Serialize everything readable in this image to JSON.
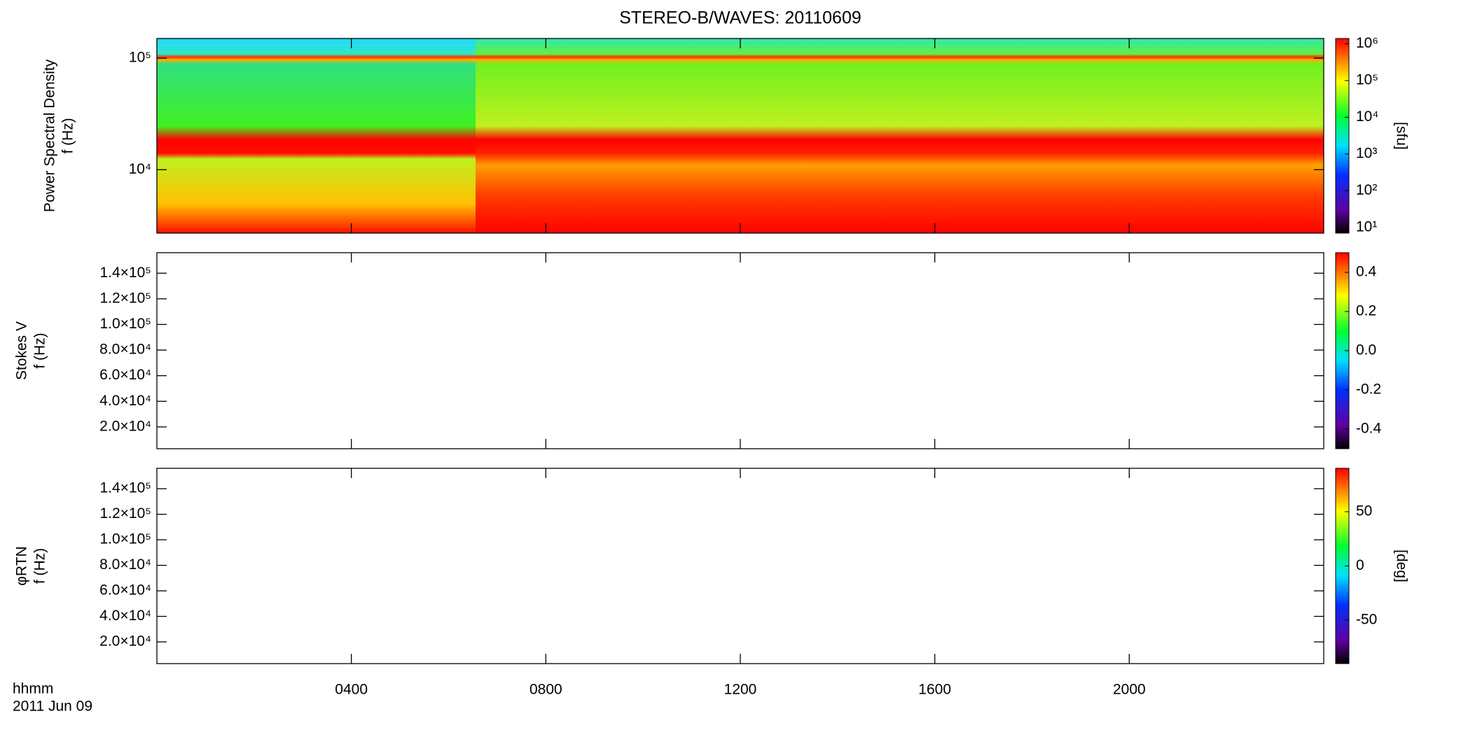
{
  "title": "STEREO-B/WAVES: 20110609",
  "xaxis": {
    "xlim": [
      0,
      24
    ],
    "xticks": [
      {
        "value": 4,
        "label": "0400"
      },
      {
        "value": 8,
        "label": "0800"
      },
      {
        "value": 12,
        "label": "1200"
      },
      {
        "value": 16,
        "label": "1600"
      },
      {
        "value": 20,
        "label": "2000"
      }
    ],
    "time_label": "hhmm",
    "date_label": "2011 Jun 09"
  },
  "chart_data": [
    {
      "type": "spectrogram",
      "ylabel": [
        "Power Spectral Density",
        "f (Hz)"
      ],
      "ylog": true,
      "ylim": [
        2700,
        150000
      ],
      "yticks": [
        {
          "value": 10000,
          "label": "10⁴"
        },
        {
          "value": 100000,
          "label": "10⁵"
        }
      ],
      "colorbar": {
        "log": true,
        "lim": [
          7,
          1400000
        ],
        "label": "[sfu]",
        "ticks": [
          {
            "value": 10,
            "label": "10¹"
          },
          {
            "value": 100,
            "label": "10²"
          },
          {
            "value": 1000,
            "label": "10³"
          },
          {
            "value": 10000,
            "label": "10⁴"
          },
          {
            "value": 100000,
            "label": "10⁵"
          },
          {
            "value": 1000000,
            "label": "10⁶"
          }
        ]
      }
    },
    {
      "type": "spectrogram",
      "ylabel": [
        "Stokes V",
        "f (Hz)"
      ],
      "ylog": false,
      "ylim": [
        3000,
        156000
      ],
      "yticks": [
        {
          "value": 20000,
          "label": "2.0×10⁴"
        },
        {
          "value": 40000,
          "label": "4.0×10⁴"
        },
        {
          "value": 60000,
          "label": "6.0×10⁴"
        },
        {
          "value": 80000,
          "label": "8.0×10⁴"
        },
        {
          "value": 100000,
          "label": "1.0×10⁵"
        },
        {
          "value": 120000,
          "label": "1.2×10⁵"
        },
        {
          "value": 140000,
          "label": "1.4×10⁵"
        }
      ],
      "colorbar": {
        "log": false,
        "lim": [
          -0.5,
          0.5
        ],
        "ticks": [
          -0.4,
          -0.2,
          {
            "value": 0,
            "label": "0.0"
          },
          0.2,
          0.4
        ]
      }
    },
    {
      "type": "spectrogram",
      "ylabel": [
        "φRTN",
        "f (Hz)"
      ],
      "ylog": false,
      "ylim": [
        3000,
        156000
      ],
      "yticks": [
        {
          "value": 20000,
          "label": "2.0×10⁴"
        },
        {
          "value": 40000,
          "label": "4.0×10⁴"
        },
        {
          "value": 60000,
          "label": "6.0×10⁴"
        },
        {
          "value": 80000,
          "label": "8.0×10⁴"
        },
        {
          "value": 100000,
          "label": "1.0×10⁵"
        },
        {
          "value": 120000,
          "label": "1.2×10⁵"
        },
        {
          "value": 140000,
          "label": "1.4×10⁵"
        }
      ],
      "colorbar": {
        "log": false,
        "lim": [
          -90,
          90
        ],
        "label": "[deg]",
        "ticks": [
          -50,
          0,
          50
        ]
      }
    }
  ]
}
